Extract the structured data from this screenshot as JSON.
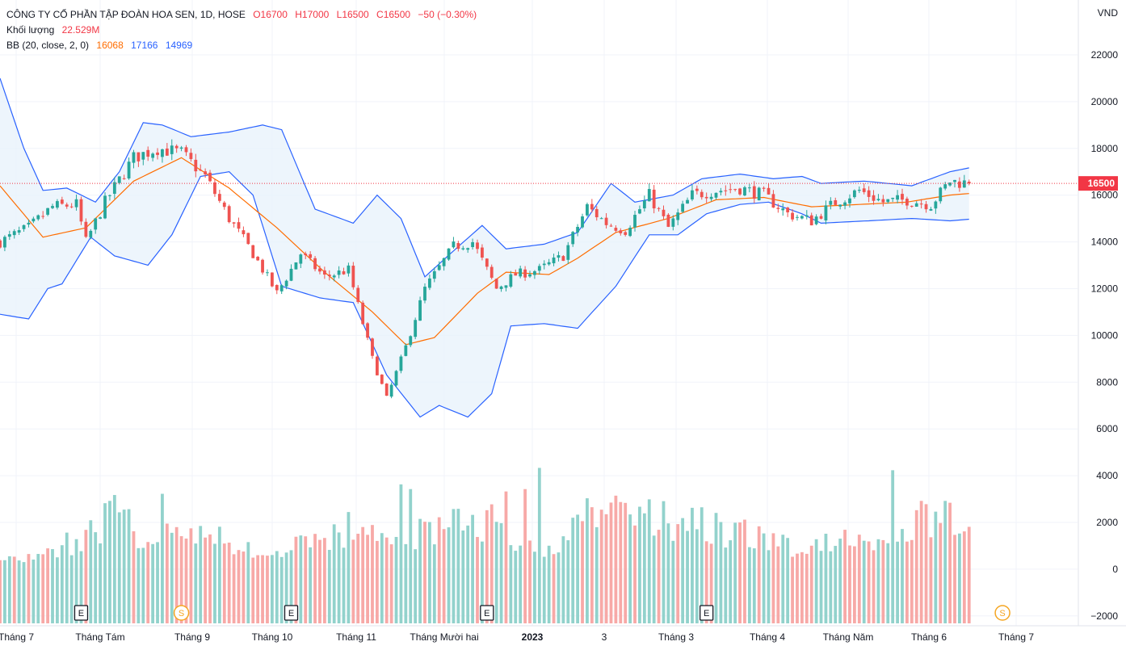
{
  "legend": {
    "title": "CÔNG TY CỔ PHẦN TẬP ĐOÀN HOA SEN, 1D, HOSE",
    "open": "O16700",
    "high": "H17000",
    "low": "L16500",
    "close": "C16500",
    "change": "−50 (−0.30%)",
    "volume_label": "Khối lượng",
    "volume_value": "22.529M",
    "bb_label": "BB (20, close, 2, 0)",
    "bb_basis": "16068",
    "bb_upper": "17166",
    "bb_lower": "14969"
  },
  "currency": "VND",
  "last_price_label": "16500",
  "colors": {
    "up": "#26a69a",
    "down": "#ef5350",
    "up_volume": "#92d2cc",
    "down_volume": "#f7a9a7",
    "basis": "#ff6d00",
    "band": "#2962ff",
    "band_fill": "#e9f2fb",
    "last_price": "#f23645",
    "event_S": "#f5a623"
  },
  "chart_data": {
    "type": "candlestick",
    "title": "CÔNG TY CỔ PHẦN TẬP ĐOÀN HOA SEN, 1D, HOSE",
    "price_ticks": [
      "22000",
      "20000",
      "18000",
      "16000",
      "14000",
      "12000",
      "10000",
      "8000",
      "6000",
      "4000",
      "2000",
      "0",
      "−2000"
    ],
    "x_ticks": [
      "Tháng 7",
      "Tháng Tám",
      "Tháng 9",
      "Tháng 10",
      "Tháng 11",
      "Tháng Mười hai",
      "2023",
      "3",
      "Tháng 3",
      "Tháng 4",
      "Tháng Năm",
      "Tháng 6",
      "Tháng 7"
    ],
    "last_price": 16500,
    "price_anchors": [
      [
        0,
        14000
      ],
      [
        6,
        14600
      ],
      [
        11,
        15500
      ],
      [
        16,
        15600
      ],
      [
        18,
        14000
      ],
      [
        22,
        15700
      ],
      [
        28,
        17600
      ],
      [
        33,
        18000
      ],
      [
        38,
        17800
      ],
      [
        43,
        16800
      ],
      [
        48,
        15000
      ],
      [
        53,
        13500
      ],
      [
        58,
        11800
      ],
      [
        63,
        13500
      ],
      [
        68,
        12500
      ],
      [
        73,
        12800
      ],
      [
        78,
        9000
      ],
      [
        81,
        7300
      ],
      [
        85,
        9500
      ],
      [
        89,
        12000
      ],
      [
        95,
        13800
      ],
      [
        99,
        14000
      ],
      [
        104,
        12000
      ],
      [
        108,
        12600
      ],
      [
        113,
        12800
      ],
      [
        118,
        13400
      ],
      [
        123,
        15500
      ],
      [
        127,
        14800
      ],
      [
        131,
        14500
      ],
      [
        136,
        16000
      ],
      [
        140,
        14600
      ],
      [
        145,
        16000
      ],
      [
        150,
        16200
      ],
      [
        155,
        16300
      ],
      [
        160,
        16000
      ],
      [
        165,
        15200
      ],
      [
        170,
        14900
      ],
      [
        175,
        15700
      ],
      [
        180,
        16200
      ],
      [
        185,
        15700
      ],
      [
        190,
        15800
      ],
      [
        195,
        15600
      ],
      [
        199,
        16600
      ],
      [
        203,
        16500
      ]
    ],
    "basis_anchors": [
      [
        0,
        16400
      ],
      [
        9,
        14200
      ],
      [
        18,
        14600
      ],
      [
        28,
        16600
      ],
      [
        38,
        17600
      ],
      [
        48,
        16300
      ],
      [
        58,
        14600
      ],
      [
        68,
        12700
      ],
      [
        78,
        11000
      ],
      [
        85,
        9600
      ],
      [
        91,
        9900
      ],
      [
        100,
        11800
      ],
      [
        106,
        12700
      ],
      [
        115,
        12600
      ],
      [
        121,
        13300
      ],
      [
        129,
        14400
      ],
      [
        140,
        15000
      ],
      [
        150,
        15800
      ],
      [
        160,
        15900
      ],
      [
        170,
        15500
      ],
      [
        180,
        15600
      ],
      [
        190,
        15700
      ],
      [
        199,
        16000
      ],
      [
        203,
        16068
      ]
    ],
    "upper_anchors": [
      [
        0,
        21000
      ],
      [
        5,
        18000
      ],
      [
        9,
        16200
      ],
      [
        14,
        16300
      ],
      [
        20,
        15700
      ],
      [
        25,
        17000
      ],
      [
        30,
        19100
      ],
      [
        34,
        19000
      ],
      [
        40,
        18500
      ],
      [
        48,
        18700
      ],
      [
        55,
        19000
      ],
      [
        59,
        18800
      ],
      [
        66,
        15400
      ],
      [
        74,
        14800
      ],
      [
        79,
        16000
      ],
      [
        84,
        15000
      ],
      [
        89,
        12500
      ],
      [
        96,
        13800
      ],
      [
        101,
        14700
      ],
      [
        106,
        13700
      ],
      [
        114,
        13900
      ],
      [
        121,
        14400
      ],
      [
        128,
        16500
      ],
      [
        133,
        15700
      ],
      [
        141,
        16000
      ],
      [
        147,
        16700
      ],
      [
        155,
        16900
      ],
      [
        162,
        16700
      ],
      [
        168,
        16800
      ],
      [
        172,
        16500
      ],
      [
        181,
        16600
      ],
      [
        191,
        16400
      ],
      [
        199,
        17000
      ],
      [
        203,
        17166
      ]
    ],
    "lower_anchors": [
      [
        0,
        10900
      ],
      [
        6,
        10700
      ],
      [
        10,
        12000
      ],
      [
        13,
        12200
      ],
      [
        19,
        14200
      ],
      [
        24,
        13400
      ],
      [
        31,
        13000
      ],
      [
        36,
        14300
      ],
      [
        42,
        16800
      ],
      [
        48,
        17000
      ],
      [
        53,
        16000
      ],
      [
        59,
        12100
      ],
      [
        67,
        11600
      ],
      [
        74,
        11400
      ],
      [
        81,
        8300
      ],
      [
        88,
        6500
      ],
      [
        92,
        7000
      ],
      [
        98,
        6500
      ],
      [
        103,
        7500
      ],
      [
        107,
        10400
      ],
      [
        114,
        10500
      ],
      [
        121,
        10300
      ],
      [
        129,
        12100
      ],
      [
        136,
        14300
      ],
      [
        142,
        14300
      ],
      [
        148,
        15200
      ],
      [
        155,
        15600
      ],
      [
        161,
        15700
      ],
      [
        168,
        15200
      ],
      [
        172,
        14800
      ],
      [
        182,
        14900
      ],
      [
        191,
        15000
      ],
      [
        199,
        14900
      ],
      [
        203,
        14969
      ]
    ],
    "volume_anchors": [
      [
        0,
        700
      ],
      [
        5,
        450
      ],
      [
        10,
        700
      ],
      [
        14,
        1100
      ],
      [
        17,
        950
      ],
      [
        23,
        2400
      ],
      [
        28,
        1600
      ],
      [
        33,
        1100
      ],
      [
        38,
        1700
      ],
      [
        44,
        1500
      ],
      [
        48,
        1200
      ],
      [
        54,
        600
      ],
      [
        58,
        600
      ],
      [
        63,
        1100
      ],
      [
        68,
        1400
      ],
      [
        73,
        1700
      ],
      [
        78,
        1300
      ],
      [
        83,
        1000
      ],
      [
        88,
        1600
      ],
      [
        93,
        1700
      ],
      [
        98,
        1900
      ],
      [
        103,
        2200
      ],
      [
        108,
        1200
      ],
      [
        113,
        700
      ],
      [
        118,
        1200
      ],
      [
        123,
        2100
      ],
      [
        128,
        2400
      ],
      [
        133,
        2800
      ],
      [
        138,
        2200
      ],
      [
        143,
        2100
      ],
      [
        148,
        1800
      ],
      [
        153,
        1600
      ],
      [
        158,
        1500
      ],
      [
        163,
        1200
      ],
      [
        168,
        600
      ],
      [
        173,
        1100
      ],
      [
        178,
        1200
      ],
      [
        183,
        900
      ],
      [
        188,
        1000
      ],
      [
        193,
        2000
      ],
      [
        198,
        2100
      ],
      [
        203,
        1600
      ]
    ],
    "volume_spikes": [
      [
        23,
        2900
      ],
      [
        34,
        3200
      ],
      [
        84,
        3600
      ],
      [
        86,
        3400
      ],
      [
        106,
        3300
      ],
      [
        110,
        3400
      ],
      [
        113,
        4300
      ],
      [
        187,
        4200
      ],
      [
        193,
        2900
      ],
      [
        198,
        2900
      ],
      [
        203,
        1800
      ]
    ],
    "events": [
      {
        "label": "E",
        "type": "earnings",
        "day": 17
      },
      {
        "label": "S",
        "type": "split",
        "day": 38
      },
      {
        "label": "E",
        "type": "earnings",
        "day": 61
      },
      {
        "label": "E",
        "type": "earnings",
        "day": 102
      },
      {
        "label": "E",
        "type": "earnings",
        "day": 148
      },
      {
        "label": "S",
        "type": "split",
        "day": 210
      }
    ]
  }
}
